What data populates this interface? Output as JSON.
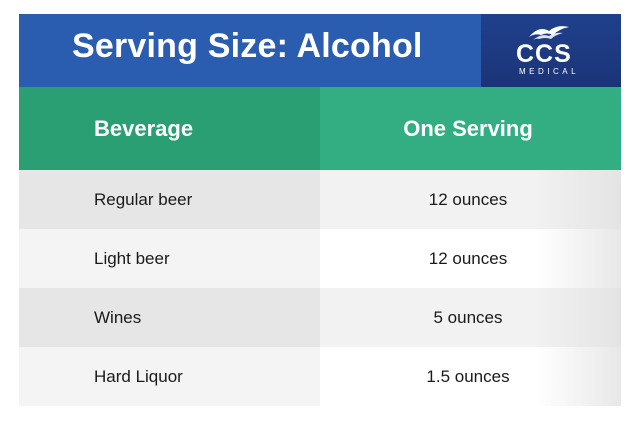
{
  "header": {
    "title": "Serving Size: Alcohol",
    "logo": {
      "name": "CCS",
      "subtitle": "MEDICAL",
      "icon": "bird-logo-icon"
    }
  },
  "table": {
    "columns": [
      "Beverage",
      "One Serving"
    ],
    "rows": [
      [
        "Regular beer",
        "12 ounces"
      ],
      [
        "Light beer",
        "12 ounces"
      ],
      [
        "Wines",
        "5 ounces"
      ],
      [
        "Hard Liquor",
        "1.5 ounces"
      ]
    ]
  },
  "colors": {
    "title_bar": "#2a5caf",
    "logo_bg": "#1d3a80",
    "header_green_left": "#2a9f73",
    "header_green_right": "#33ae82",
    "row_shade": "#e6e6e6"
  }
}
